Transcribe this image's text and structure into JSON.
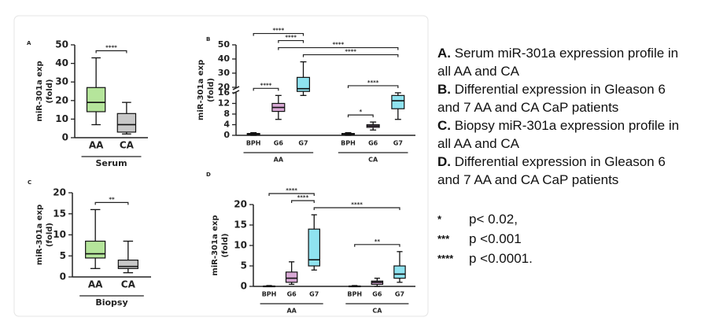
{
  "chart_data": [
    {
      "type": "box",
      "panel": "A",
      "ylabel": [
        "miR-301a exp",
        "(fold)"
      ],
      "ylim": [
        0,
        50
      ],
      "yticks": [
        0,
        10,
        20,
        30,
        40,
        50
      ],
      "groups": [
        {
          "name": "Serum",
          "boxes": [
            {
              "name": "AA",
              "color": "#b5e59b",
              "min": 7,
              "q1": 14,
              "median": 19,
              "q3": 27,
              "max": 43
            },
            {
              "name": "CA",
              "color": "#c8c8c8",
              "min": 2,
              "q1": 3,
              "median": 7,
              "q3": 13,
              "max": 19
            }
          ]
        }
      ],
      "brackets": [
        {
          "from": 0,
          "to": 1,
          "label": "****"
        }
      ]
    },
    {
      "type": "box",
      "panel": "B",
      "ylabel": [
        "miR-301a exp",
        "(fold)"
      ],
      "ylim": [
        0,
        50
      ],
      "ybreak": [
        16,
        20
      ],
      "yticks": [
        0,
        4,
        8,
        12,
        16,
        20,
        30,
        40,
        50
      ],
      "groups": [
        {
          "name": "AA",
          "boxes": [
            {
              "name": "BPH",
              "color": "#f7b98a",
              "min": 0,
              "q1": 0.3,
              "median": 0.5,
              "q3": 0.7,
              "max": 1
            },
            {
              "name": "G6",
              "color": "#d9a9d6",
              "min": 6,
              "q1": 9,
              "median": 10.5,
              "q3": 12,
              "max": 15
            },
            {
              "name": "G7",
              "color": "#8fe3f0",
              "min": 15,
              "q1": 17,
              "median": 19,
              "q3": 27,
              "max": 38
            }
          ]
        },
        {
          "name": "CA",
          "boxes": [
            {
              "name": "BPH",
              "color": "#f7b98a",
              "min": 0,
              "q1": 0.3,
              "median": 0.5,
              "q3": 0.7,
              "max": 1
            },
            {
              "name": "G6",
              "color": "#d9a9d6",
              "min": 2,
              "q1": 3,
              "median": 3.5,
              "q3": 4,
              "max": 5
            },
            {
              "name": "G7",
              "color": "#8fe3f0",
              "min": 6,
              "q1": 10,
              "median": 13,
              "q3": 15,
              "max": 16
            }
          ]
        }
      ],
      "brackets": [
        {
          "from": 0,
          "to": 1,
          "label": "****"
        },
        {
          "from": 3,
          "to": 4,
          "label": "*"
        },
        {
          "from": 3,
          "to": 5,
          "label": "****"
        },
        {
          "from": 2,
          "to": 5,
          "label": "****"
        },
        {
          "from": 1,
          "to": 5,
          "label": "****"
        },
        {
          "from": 1,
          "to": 2,
          "label": "****"
        },
        {
          "from": 0,
          "to": 2,
          "label": "****"
        }
      ]
    },
    {
      "type": "box",
      "panel": "C",
      "ylabel": [
        "miR-301a exp",
        "(fold)"
      ],
      "ylim": [
        0,
        20
      ],
      "yticks": [
        0,
        5,
        10,
        15,
        20
      ],
      "groups": [
        {
          "name": "Biopsy",
          "boxes": [
            {
              "name": "AA",
              "color": "#b5e59b",
              "min": 2,
              "q1": 4.5,
              "median": 5.5,
              "q3": 8.5,
              "max": 16
            },
            {
              "name": "CA",
              "color": "#c8c8c8",
              "min": 1,
              "q1": 2,
              "median": 2.5,
              "q3": 4,
              "max": 8.5
            }
          ]
        }
      ],
      "brackets": [
        {
          "from": 0,
          "to": 1,
          "label": "**"
        }
      ]
    },
    {
      "type": "box",
      "panel": "D",
      "ylabel": [
        "miR-301a exp",
        "(fold)"
      ],
      "ylim": [
        0,
        20
      ],
      "yticks": [
        0,
        5,
        10,
        15,
        20
      ],
      "groups": [
        {
          "name": "AA",
          "boxes": [
            {
              "name": "BPH",
              "color": "#f7b98a",
              "min": 0,
              "q1": 0,
              "median": 0,
              "q3": 0.1,
              "max": 0.2
            },
            {
              "name": "G6",
              "color": "#d9a9d6",
              "min": 0.5,
              "q1": 1,
              "median": 2,
              "q3": 3.5,
              "max": 6
            },
            {
              "name": "G7",
              "color": "#8fe3f0",
              "min": 4,
              "q1": 5,
              "median": 6.5,
              "q3": 14,
              "max": 17.5
            }
          ]
        },
        {
          "name": "CA",
          "boxes": [
            {
              "name": "BPH",
              "color": "#f7b98a",
              "min": 0,
              "q1": 0,
              "median": 0,
              "q3": 0.1,
              "max": 0.2
            },
            {
              "name": "G6",
              "color": "#d9a9d6",
              "min": 0,
              "q1": 0.5,
              "median": 1,
              "q3": 1.3,
              "max": 2
            },
            {
              "name": "G7",
              "color": "#8fe3f0",
              "min": 1,
              "q1": 2,
              "median": 3,
              "q3": 5,
              "max": 8.5
            }
          ]
        }
      ],
      "brackets": [
        {
          "from": 3,
          "to": 5,
          "label": "**"
        },
        {
          "from": 2,
          "to": 5,
          "label": "****"
        },
        {
          "from": 1,
          "to": 2,
          "label": "****"
        },
        {
          "from": 0,
          "to": 2,
          "label": "****"
        }
      ]
    }
  ],
  "notes": [
    {
      "label": "A.",
      "text": "Serum miR-301a expression profile in all AA and CA"
    },
    {
      "label": "B.",
      "text": "Differential expression in Gleason 6 and 7 AA and CA CaP patients"
    },
    {
      "label": "C.",
      "text": "Biopsy miR-301a expression profile in all AA and CA"
    },
    {
      "label": "D.",
      "text": "Differential expression in Gleason 6 and 7 AA and CA CaP patients"
    }
  ],
  "significance": [
    {
      "symbol": "*",
      "text": "p< 0.02,"
    },
    {
      "symbol": "***",
      "text": "p <0.001"
    },
    {
      "symbol": "****",
      "text": "p <0.0001."
    }
  ]
}
